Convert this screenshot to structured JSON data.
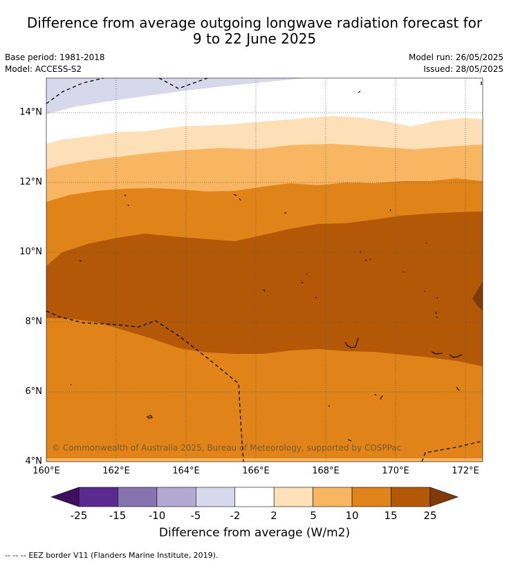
{
  "header": {
    "title_line1": "Difference from average outgoing longwave radiation forecast for",
    "title_line2": "9 to 22 June 2025",
    "base_period": "Base period: 1981-2018",
    "model": "Model: ACCESS-S2",
    "model_run": "Model run: 26/05/2025",
    "issued": "Issued: 28/05/2025"
  },
  "map": {
    "lat_labels": [
      "14°N",
      "12°N",
      "10°N",
      "8°N",
      "6°N",
      "4°N"
    ],
    "lon_labels": [
      "160°E",
      "162°E",
      "164°E",
      "166°E",
      "168°E",
      "170°E",
      "172°E"
    ],
    "extent": {
      "lon_min": 160,
      "lon_max": 172.5,
      "lat_min": 4,
      "lat_max": 15.1
    },
    "copyright": "© Commonwealth of Australia 2025, Bureau of Meteorology, supported by COSPPac"
  },
  "colorbar": {
    "ticks": [
      "-25",
      "-15",
      "-10",
      "-5",
      "-2",
      "2",
      "5",
      "10",
      "15",
      "25"
    ],
    "colors": [
      "#5b2a90",
      "#8574b0",
      "#b1a9d2",
      "#d8d8ec",
      "#ffffff",
      "#fde0b8",
      "#f9b662",
      "#e08319",
      "#b35806"
    ],
    "extend_low_color": "#3d0f5f",
    "extend_high_color": "#7f3b08",
    "label": "Difference from average (W/m2)"
  },
  "legend": {
    "eez_marker": "--  --  --",
    "eez_text": "EEZ border V11 (Flanders Marine Institute, 2019)."
  }
}
